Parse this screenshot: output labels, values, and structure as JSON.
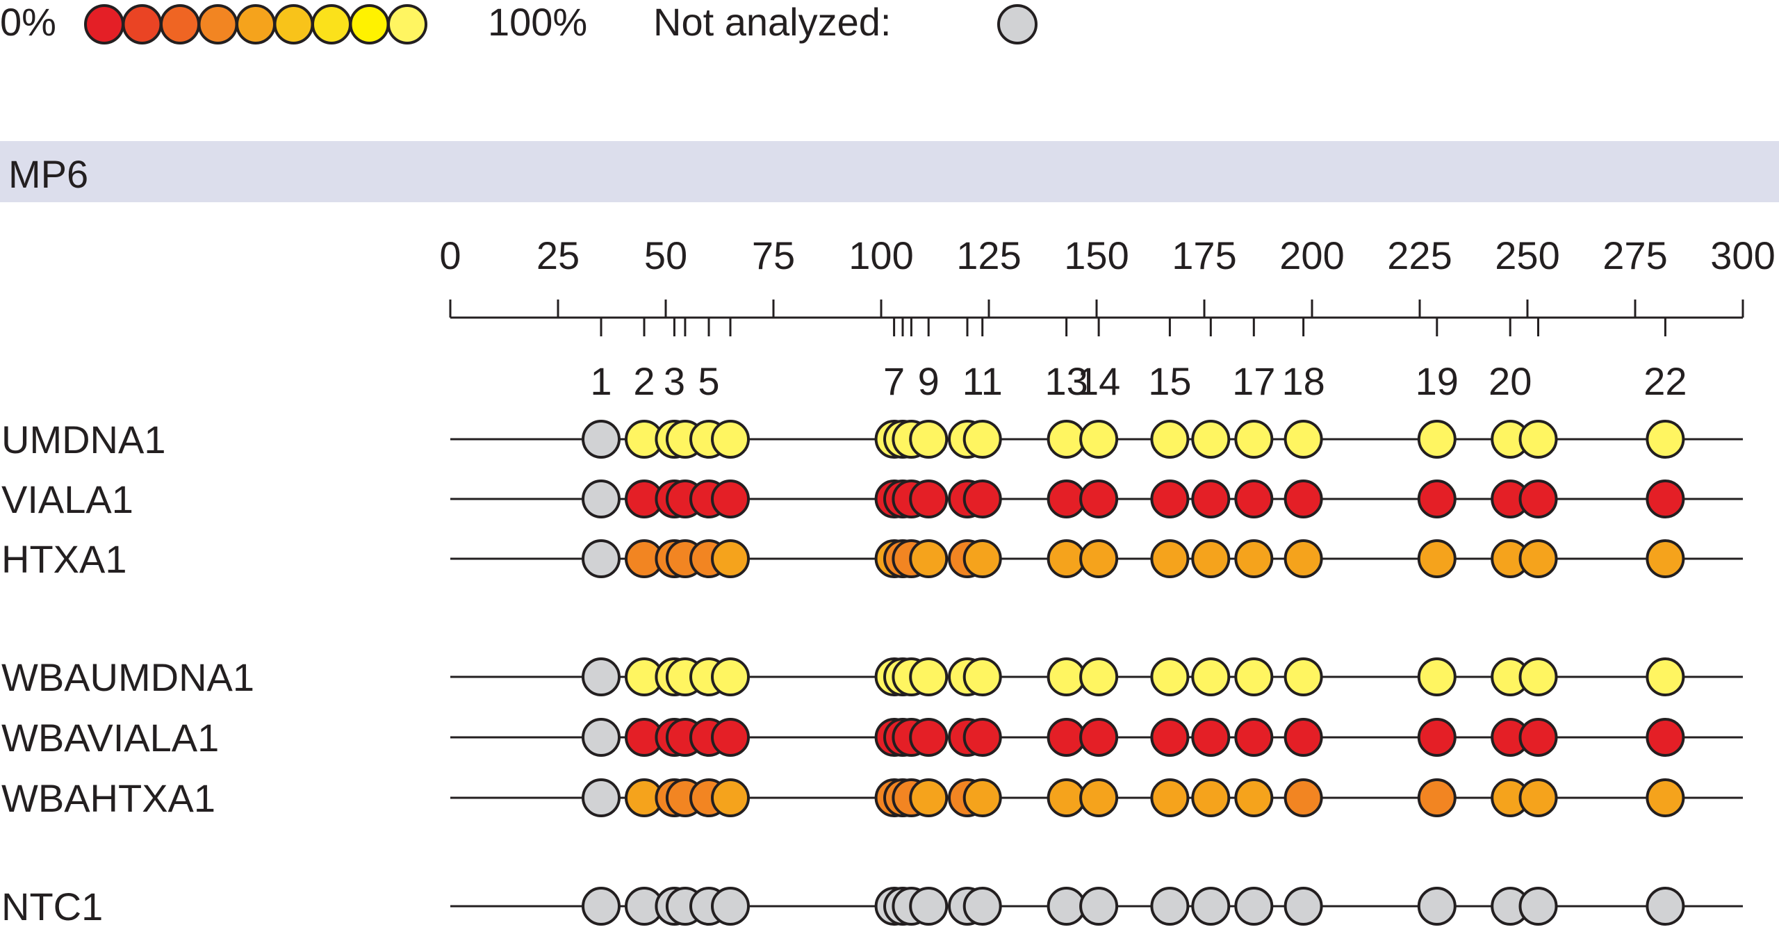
{
  "legend": {
    "min_label": "0%",
    "max_label": "100%",
    "not_analyzed_label": "Not analyzed:",
    "scale_colors": [
      "#e41f26",
      "#ea4424",
      "#ef6523",
      "#f28522",
      "#f5a31c",
      "#f8c31a",
      "#fbe11b",
      "#fff200",
      "#fff561"
    ],
    "not_analyzed_color": "#d1d2d4"
  },
  "panel": {
    "title": "MP6",
    "header_color": "#dcdeec"
  },
  "axis": {
    "min": 0,
    "max": 300,
    "ticks": [
      0,
      25,
      50,
      75,
      100,
      125,
      150,
      175,
      200,
      225,
      250,
      275,
      300
    ]
  },
  "sites": {
    "positions": [
      35,
      45,
      52,
      54.5,
      60,
      65,
      103,
      105,
      107,
      111,
      120,
      123.5,
      143,
      150.5,
      167,
      176.5,
      186.5,
      198,
      229,
      246,
      252.5,
      282
    ],
    "labels": [
      {
        "text": "1",
        "site_index": 0
      },
      {
        "text": "2",
        "site_index": 1
      },
      {
        "text": "3",
        "site_index": 2
      },
      {
        "text": "5",
        "site_index": 4
      },
      {
        "text": "7",
        "site_index": 6
      },
      {
        "text": "9",
        "site_index": 9
      },
      {
        "text": "11",
        "site_index": 11
      },
      {
        "text": "13",
        "site_index": 12
      },
      {
        "text": "14",
        "site_index": 13
      },
      {
        "text": "15",
        "site_index": 14
      },
      {
        "text": "17",
        "site_index": 16
      },
      {
        "text": "18",
        "site_index": 17
      },
      {
        "text": "19",
        "site_index": 18
      },
      {
        "text": "20",
        "site_index": 19
      },
      {
        "text": "22",
        "site_index": 21
      }
    ]
  },
  "samples": [
    {
      "name": "UMDNA1",
      "group": 0,
      "values": [
        null,
        100,
        100,
        100,
        100,
        100,
        100,
        100,
        100,
        100,
        100,
        100,
        100,
        100,
        100,
        100,
        100,
        100,
        100,
        100,
        100,
        100
      ]
    },
    {
      "name": "VIALA1",
      "group": 0,
      "values": [
        null,
        0,
        0,
        0,
        0,
        0,
        0,
        0,
        0,
        0,
        0,
        0,
        0,
        0,
        0,
        0,
        0,
        0,
        0,
        0,
        0,
        0
      ]
    },
    {
      "name": "HTXA1",
      "group": 0,
      "values": [
        null,
        35,
        42,
        42,
        42,
        48,
        48,
        42,
        42,
        48,
        42,
        48,
        48,
        48,
        48,
        48,
        48,
        48,
        48,
        48,
        48,
        48
      ]
    },
    {
      "name": "WBAUMDNA1",
      "group": 1,
      "values": [
        null,
        100,
        100,
        100,
        100,
        100,
        100,
        100,
        100,
        100,
        100,
        100,
        100,
        100,
        100,
        100,
        100,
        100,
        100,
        100,
        100,
        100
      ]
    },
    {
      "name": "WBAVIALA1",
      "group": 1,
      "values": [
        null,
        0,
        0,
        0,
        0,
        0,
        0,
        0,
        0,
        0,
        0,
        0,
        0,
        0,
        0,
        0,
        0,
        0,
        0,
        0,
        0,
        0
      ]
    },
    {
      "name": "WBAHTXA1",
      "group": 1,
      "values": [
        null,
        48,
        38,
        35,
        42,
        48,
        35,
        38,
        35,
        48,
        42,
        48,
        48,
        48,
        48,
        48,
        48,
        35,
        35,
        48,
        48,
        48
      ]
    },
    {
      "name": "NTC1",
      "group": 2,
      "values": [
        null,
        null,
        null,
        null,
        null,
        null,
        null,
        null,
        null,
        null,
        null,
        null,
        null,
        null,
        null,
        null,
        null,
        null,
        null,
        null,
        null,
        null
      ]
    }
  ]
}
